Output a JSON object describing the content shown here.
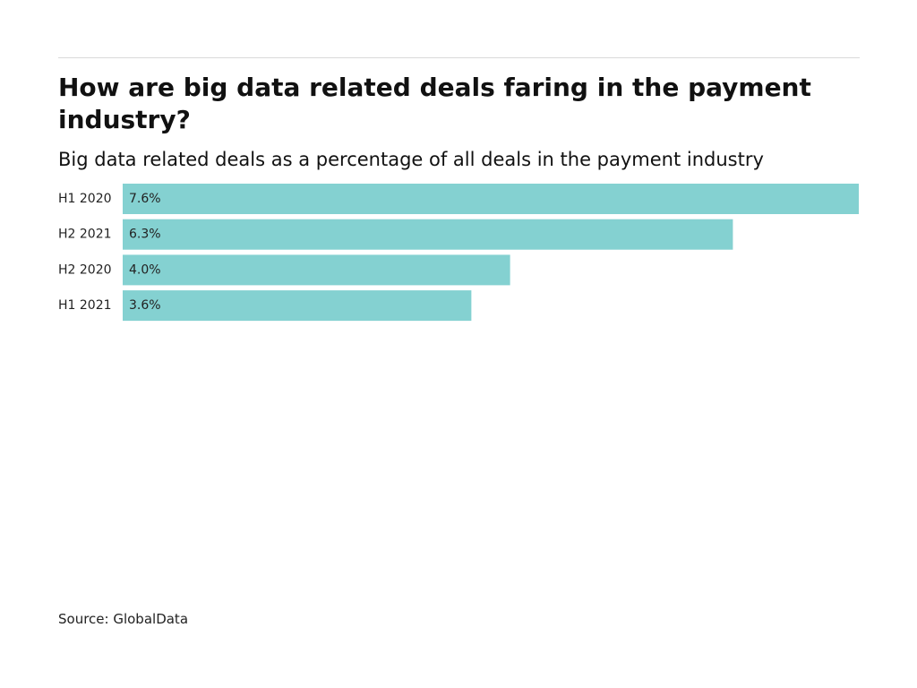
{
  "header": {
    "title": "How are big data related deals faring in the payment industry?",
    "subtitle": "Big data related deals as a percentage of all deals in the payment industry"
  },
  "footer": {
    "source": "Source: GlobalData"
  },
  "colors": {
    "bar": "#84d1d1",
    "text": "#111111",
    "rule": "#d9d9d9"
  },
  "chart_data": {
    "type": "bar",
    "orientation": "horizontal",
    "title": "How are big data related deals faring in the payment industry?",
    "subtitle": "Big data related deals as a percentage of all deals in the payment industry",
    "categories": [
      "H1 2020",
      "H2 2021",
      "H2 2020",
      "H1 2021"
    ],
    "values": [
      7.6,
      6.3,
      4.0,
      3.6
    ],
    "value_labels": [
      "7.6%",
      "6.3%",
      "4.0%",
      "3.6%"
    ],
    "unit": "%",
    "xlim": [
      0,
      7.6
    ],
    "grid": false,
    "legend": "none"
  }
}
